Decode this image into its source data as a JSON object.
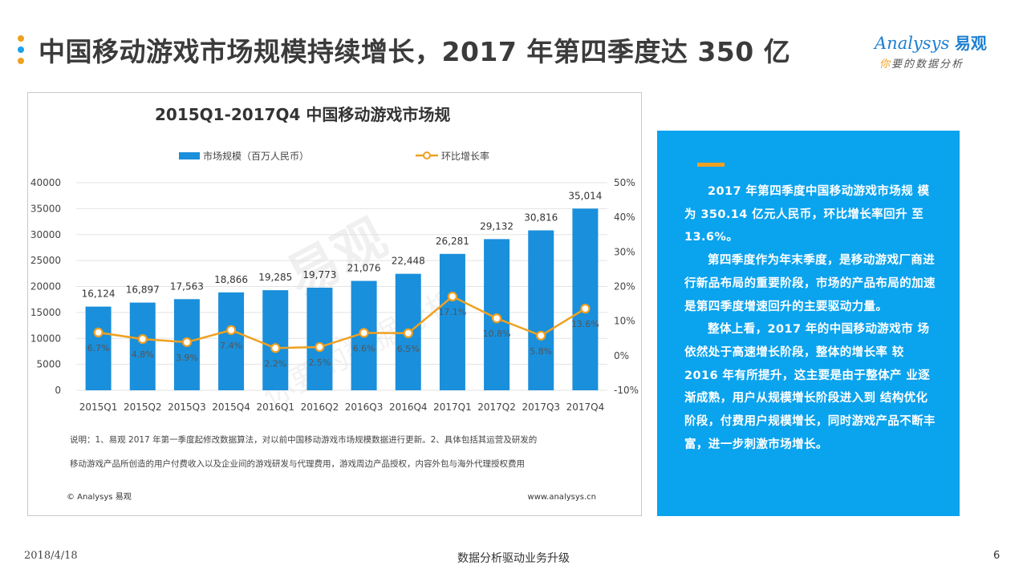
{
  "page": {
    "title": "中国移动游戏市场规模持续增长，2017 年第四季度达 350 亿",
    "dot_colors": [
      "#f0a020",
      "#1aa3e8",
      "#f0a020"
    ],
    "logo_brand": "nalysys",
    "logo_brand_initial": "A",
    "logo_cn": "易观",
    "logo_slogan_accent": "你",
    "logo_slogan": "要的数据分析"
  },
  "chart_data": {
    "type": "bar",
    "title": "2015Q1-2017Q4 中国移动游戏市场规",
    "categories": [
      "2015Q1",
      "2015Q2",
      "2015Q3",
      "2015Q4",
      "2016Q1",
      "2016Q2",
      "2016Q3",
      "2016Q4",
      "2017Q1",
      "2017Q2",
      "2017Q3",
      "2017Q4"
    ],
    "series": [
      {
        "name": "市场规模（百万人民币）",
        "type": "bar",
        "color": "#1a8fdb",
        "values": [
          16124,
          16897,
          17563,
          18866,
          19285,
          19773,
          21076,
          22448,
          26281,
          29132,
          30816,
          35014
        ],
        "labels": [
          "16,124",
          "16,897",
          "17,563",
          "18,866",
          "19,285",
          "19,773",
          "21,076",
          "22,448",
          "26,281",
          "29,132",
          "30,816",
          "35,014"
        ]
      },
      {
        "name": "环比增长率",
        "type": "line",
        "axis": "right",
        "color": "#f0a020",
        "values": [
          6.7,
          4.8,
          3.9,
          7.4,
          2.2,
          2.5,
          6.6,
          6.5,
          17.1,
          10.8,
          5.8,
          13.6
        ],
        "labels": [
          "6.7%",
          "4.8%",
          "3.9%",
          "7.4%",
          "2.2%",
          "2.5%",
          "6.6%",
          "6.5%",
          "17.1%",
          "10.8%",
          "5.8%",
          "13.6%"
        ]
      }
    ],
    "ylim": [
      0,
      40000
    ],
    "yticks": [
      0,
      5000,
      10000,
      15000,
      20000,
      25000,
      30000,
      35000,
      40000
    ],
    "ytick_labels": [
      "0",
      "5000",
      "10000",
      "15000",
      "20000",
      "25000",
      "30000",
      "35000",
      "40000"
    ],
    "y2lim": [
      -10,
      50
    ],
    "y2ticks": [
      -10,
      0,
      10,
      20,
      30,
      40,
      50
    ],
    "y2tick_labels": [
      "-10%",
      "0%",
      "10%",
      "20%",
      "30%",
      "40%",
      "50%"
    ],
    "legend_position": "top",
    "grid": true,
    "note_line1": "说明：1、易观 2017 年第一季度起修改数据算法，对以前中国移动游戏市场规模数据进行更新。2、具体包括其运营及研发的",
    "note_line2": "移动游戏产品所创造的用户付费收入以及企业间的游戏研发与代理费用，游戏周边产品授权，内容外包与海外代理授权费用",
    "source_left": "© Analysys 易观",
    "source_right": "www.analysys.cn",
    "watermark_big": "易观",
    "watermark_small": "你要的数据分析"
  },
  "side_panel": {
    "paragraphs": [
      "2017 年第四季度中国移动游戏市场规 模为 350.14 亿元人民币，环比增长率回升 至 13.6%。",
      "第四季度作为年末季度，是移动游戏厂商进行新品布局的重要阶段，市场的产品布局的加速是第四季度增速回升的主要驱动力量。",
      "整体上看，2017 年的中国移动游戏市 场依然处于高速增长阶段，整体的增长率 较 2016 年有所提升，这主要是由于整体产 业逐渐成熟，用户从规模增长阶段进入到 结构优化阶段，付费用户规模增长，同时游戏产品不断丰富，进一步刺激市场增长。"
    ]
  },
  "footer": {
    "date": "2018/4/18",
    "center": "数据分析驱动业务升级",
    "page_number": "6"
  }
}
